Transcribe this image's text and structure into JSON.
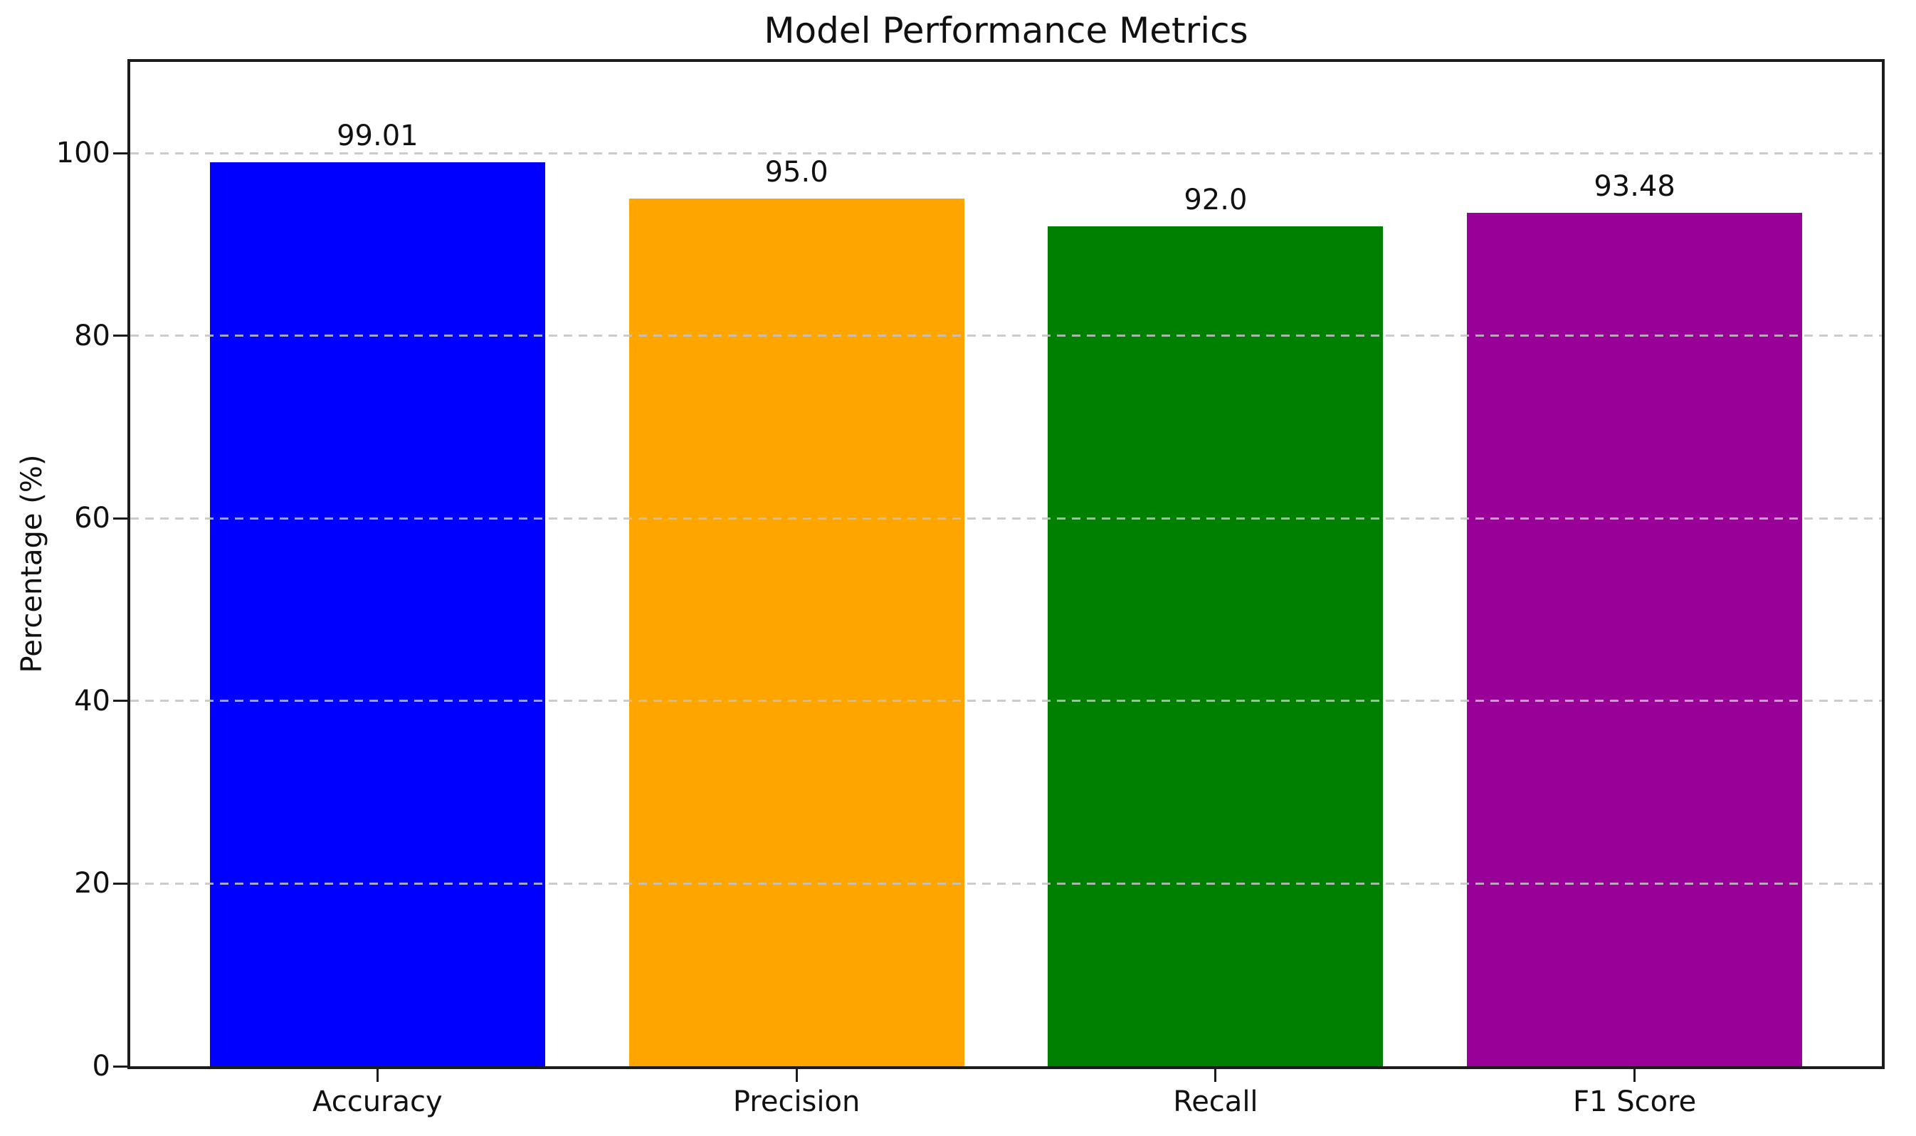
{
  "chart_data": {
    "type": "bar",
    "title": "Model Performance Metrics",
    "xlabel": "",
    "ylabel": "Percentage (%)",
    "categories": [
      "Accuracy",
      "Precision",
      "Recall",
      "F1 Score"
    ],
    "values": [
      99.01,
      95.0,
      92.0,
      93.48
    ],
    "value_labels": [
      "99.01",
      "95.0",
      "92.0",
      "93.48"
    ],
    "bar_colors": [
      "#0000ff",
      "#ffa500",
      "#008000",
      "#980098"
    ],
    "yticks": [
      0,
      20,
      40,
      60,
      80,
      100
    ],
    "ylim": [
      0,
      110
    ],
    "bar_width_fraction": 0.8,
    "grid": {
      "axis": "y",
      "style": "dashed",
      "color": "#c3c3c3",
      "drawn_over_bars": true
    },
    "legend_position": "none",
    "background_color": "#ffffff",
    "text_color": "#111111"
  }
}
